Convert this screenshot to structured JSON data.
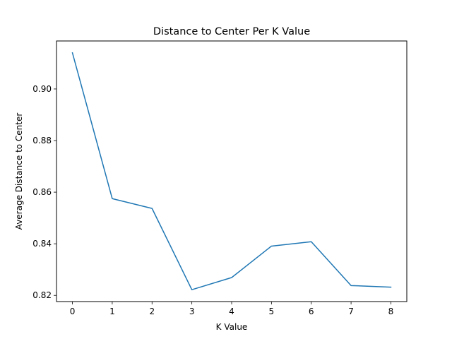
{
  "chart_data": {
    "type": "line",
    "title": "Distance to Center Per K Value",
    "xlabel": "K Value",
    "ylabel": "Average Distance to Center",
    "x": [
      0,
      1,
      2,
      3,
      4,
      5,
      6,
      7,
      8
    ],
    "series": [
      {
        "values": [
          0.914,
          0.8575,
          0.8537,
          0.8222,
          0.8269,
          0.8391,
          0.8408,
          0.8238,
          0.8232
        ],
        "color": "#1f77b4"
      }
    ],
    "xlim": [
      -0.4,
      8.4
    ],
    "ylim": [
      0.8176,
      0.9186
    ],
    "xticks": [
      "0",
      "1",
      "2",
      "3",
      "4",
      "5",
      "6",
      "7",
      "8"
    ],
    "yticks": [
      "0.82",
      "0.84",
      "0.86",
      "0.88",
      "0.90"
    ],
    "grid": false,
    "legend": false
  }
}
